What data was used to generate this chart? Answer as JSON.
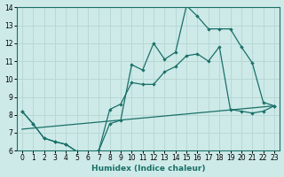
{
  "xlabel": "Humidex (Indice chaleur)",
  "bg_color": "#cdeae8",
  "line_color": "#1a7068",
  "grid_color": "#b8d8d5",
  "xlim": [
    -0.5,
    23.5
  ],
  "ylim": [
    6,
    14
  ],
  "xticks": [
    0,
    1,
    2,
    3,
    4,
    5,
    6,
    7,
    8,
    9,
    10,
    11,
    12,
    13,
    14,
    15,
    16,
    17,
    18,
    19,
    20,
    21,
    22,
    23
  ],
  "yticks": [
    6,
    7,
    8,
    9,
    10,
    11,
    12,
    13,
    14
  ],
  "line1_x": [
    0,
    1,
    2,
    3,
    4,
    5,
    6,
    7,
    8,
    9,
    10,
    11,
    12,
    13,
    14,
    15,
    16,
    17,
    18,
    19,
    20,
    21,
    22,
    23
  ],
  "line1_y": [
    8.2,
    7.5,
    6.7,
    6.5,
    6.35,
    5.95,
    5.9,
    6.0,
    7.5,
    7.7,
    10.8,
    10.5,
    12.0,
    11.1,
    11.5,
    14.1,
    13.5,
    12.8,
    12.8,
    12.8,
    11.8,
    10.9,
    8.7,
    8.5
  ],
  "line2_x": [
    0,
    1,
    2,
    3,
    4,
    5,
    6,
    7,
    8,
    9,
    10,
    11,
    12,
    13,
    14,
    15,
    16,
    17,
    18,
    19,
    20,
    21,
    22,
    23
  ],
  "line2_y": [
    8.2,
    7.5,
    6.7,
    6.5,
    6.35,
    5.95,
    5.9,
    6.0,
    8.3,
    8.6,
    9.8,
    9.7,
    9.7,
    10.4,
    10.7,
    11.3,
    11.4,
    11.0,
    11.8,
    8.3,
    8.2,
    8.1,
    8.2,
    8.5
  ],
  "line3_x": [
    0,
    23
  ],
  "line3_y": [
    7.2,
    8.5
  ]
}
